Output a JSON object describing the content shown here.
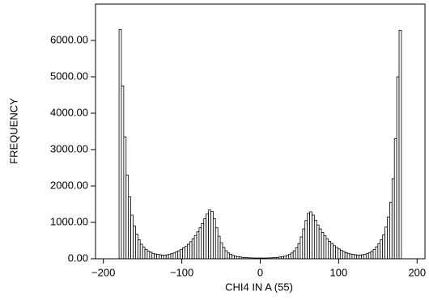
{
  "chart_data": {
    "type": "histogram",
    "x_label": "CHI4 IN A (55)",
    "y_label": "FREQUENCY",
    "bins": [
      -180,
      -177,
      -174,
      -171,
      -168,
      -165,
      -162,
      -159,
      -156,
      -153,
      -150,
      -147,
      -144,
      -141,
      -138,
      -135,
      -132,
      -129,
      -126,
      -123,
      -120,
      -117,
      -114,
      -111,
      -108,
      -105,
      -102,
      -99,
      -96,
      -93,
      -90,
      -87,
      -84,
      -81,
      -78,
      -75,
      -72,
      -69,
      -66,
      -63,
      -60,
      -57,
      -54,
      -51,
      -48,
      -45,
      -42,
      -39,
      -36,
      -33,
      -30,
      -27,
      -24,
      -21,
      -18,
      -15,
      -12,
      -9,
      -6,
      -3,
      0,
      3,
      6,
      9,
      12,
      15,
      18,
      21,
      24,
      27,
      30,
      33,
      36,
      39,
      42,
      45,
      48,
      51,
      54,
      57,
      60,
      63,
      66,
      69,
      72,
      75,
      78,
      81,
      84,
      87,
      90,
      93,
      96,
      99,
      102,
      105,
      108,
      111,
      114,
      117,
      120,
      123,
      126,
      129,
      132,
      135,
      138,
      141,
      144,
      147,
      150,
      153,
      156,
      159,
      162,
      165,
      168,
      171,
      174,
      177,
      180
    ],
    "values": [
      6300,
      4750,
      3350,
      2300,
      1700,
      1200,
      900,
      680,
      520,
      400,
      320,
      260,
      210,
      180,
      150,
      130,
      120,
      110,
      100,
      100,
      110,
      120,
      140,
      160,
      190,
      220,
      260,
      300,
      340,
      400,
      470,
      550,
      640,
      740,
      850,
      970,
      1100,
      1230,
      1340,
      1300,
      1100,
      850,
      620,
      440,
      310,
      220,
      160,
      120,
      90,
      70,
      60,
      50,
      40,
      35,
      30,
      25,
      25,
      20,
      20,
      20,
      20,
      20,
      20,
      25,
      25,
      30,
      35,
      40,
      50,
      60,
      70,
      90,
      120,
      160,
      220,
      300,
      420,
      600,
      820,
      1050,
      1250,
      1290,
      1200,
      1060,
      930,
      820,
      720,
      630,
      550,
      480,
      420,
      360,
      310,
      270,
      230,
      200,
      170,
      150,
      130,
      120,
      110,
      100,
      100,
      110,
      120,
      140,
      170,
      210,
      260,
      330,
      410,
      520,
      660,
      870,
      1150,
      1550,
      2200,
      3300,
      5000,
      6280
    ],
    "color": "#ffffff",
    "edgecolor": "#000000",
    "xlim": [
      -210,
      210
    ],
    "ylim": [
      0,
      7000
    ],
    "xticks": [
      {
        "value": -200,
        "label": "−200"
      },
      {
        "value": -100,
        "label": "−100"
      },
      0,
      100,
      200
    ],
    "yticks": [
      {
        "value": 0,
        "label": "0.00"
      },
      {
        "value": 1000,
        "label": "1000.00"
      },
      {
        "value": 2000,
        "label": "2000.00"
      },
      {
        "value": 3000,
        "label": "3000.00"
      },
      {
        "value": 4000,
        "label": "4000.00"
      },
      {
        "value": 5000,
        "label": "5000.00"
      },
      {
        "value": 6000,
        "label": "6000.00"
      }
    ],
    "grid": false
  }
}
